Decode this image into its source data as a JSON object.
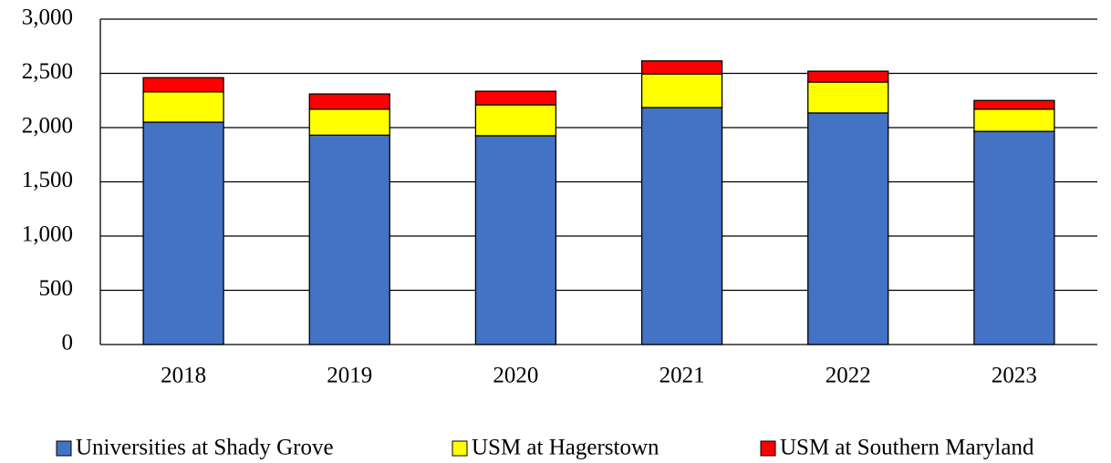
{
  "chart_data": {
    "type": "stacked_bar",
    "categories": [
      "2018",
      "2019",
      "2020",
      "2021",
      "2022",
      "2023"
    ],
    "series": [
      {
        "name": "Universities at Shady Grove",
        "color": "#4472c4",
        "values": [
          2050,
          1930,
          1925,
          2185,
          2135,
          1965
        ]
      },
      {
        "name": "USM at Hagerstown",
        "color": "#ffff00",
        "values": [
          280,
          240,
          285,
          310,
          285,
          205
        ]
      },
      {
        "name": "USM at Southern Maryland",
        "color": "#ff0000",
        "values": [
          130,
          140,
          125,
          120,
          100,
          80
        ]
      }
    ],
    "ylim": [
      0,
      3000
    ],
    "yticks": [
      0,
      500,
      {
        "value": 1000,
        "label": "1,000"
      },
      {
        "value": 1500,
        "label": "1,500"
      },
      {
        "value": 2000,
        "label": "2,000"
      },
      {
        "value": 2500,
        "label": "2,500"
      },
      {
        "value": 3000,
        "label": "3,000"
      }
    ],
    "grid": true,
    "legend": "bottom"
  }
}
